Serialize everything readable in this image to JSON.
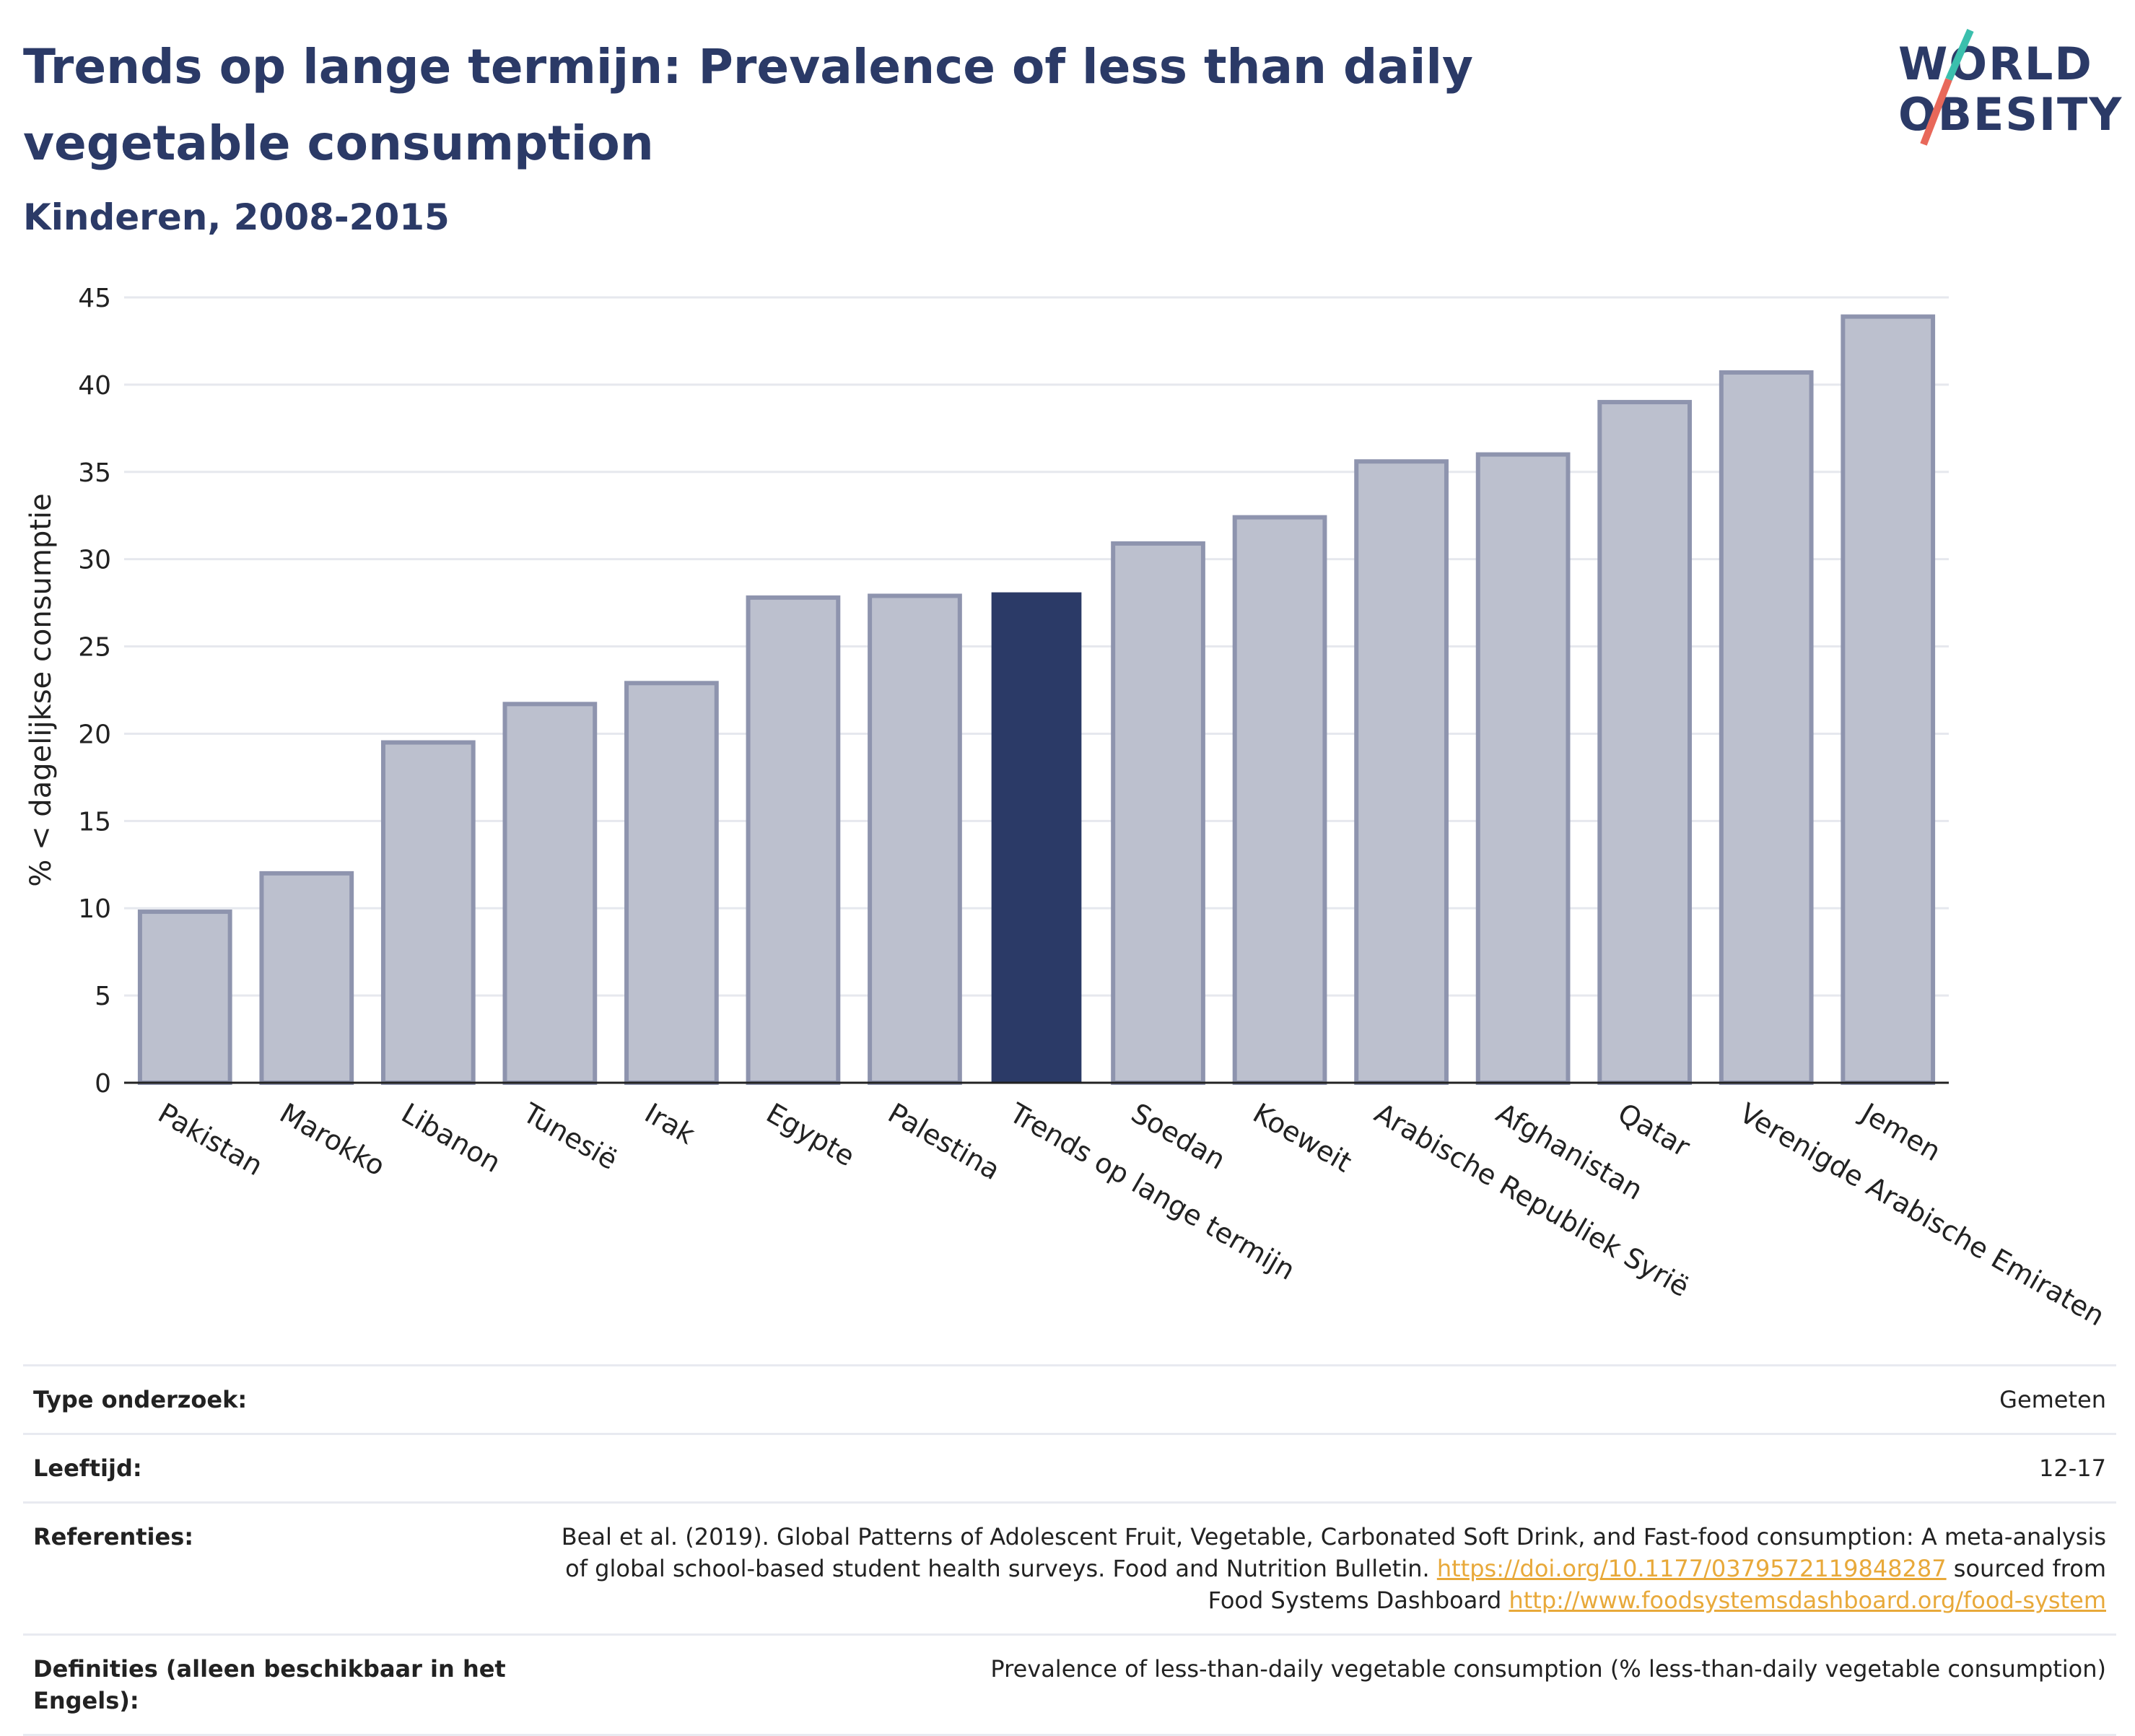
{
  "header": {
    "title": "Trends op lange termijn: Prevalence of less than daily vegetable consumption",
    "subtitle": "Kinderen, 2008-2015"
  },
  "logo": {
    "line1": "WORLD",
    "line2": "OBESITY",
    "accent_teal": "#3bbfad",
    "accent_red": "#e8685a"
  },
  "colors": {
    "bar": "#bcc0ce",
    "bar_edge": "#8e94ae",
    "highlight": "#2b3a67",
    "grid": "#e6e8ee"
  },
  "chart_data": {
    "type": "bar",
    "ylabel": "% < dagelijkse consumptie",
    "ylim": [
      0,
      45
    ],
    "yticks": [
      0,
      5,
      10,
      15,
      20,
      25,
      30,
      35,
      40,
      45
    ],
    "categories": [
      "Pakistan",
      "Marokko",
      "Libanon",
      "Tunesië",
      "Irak",
      "Egypte",
      "Palestina",
      "Trends op lange termijn",
      "Soedan",
      "Koeweit",
      "Arabische Republiek Syrië",
      "Afghanistan",
      "Qatar",
      "Verenigde Arabische Emiraten",
      "Jemen"
    ],
    "values": [
      9.8,
      12.0,
      19.5,
      21.7,
      22.9,
      27.8,
      27.9,
      28.1,
      30.9,
      32.4,
      35.6,
      36.0,
      39.0,
      40.7,
      43.9
    ],
    "highlight": "Trends op lange termijn",
    "grid": true
  },
  "info": {
    "type_label": "Type onderzoek:",
    "type_value": "Gemeten",
    "age_label": "Leeftijd:",
    "age_value": "12-17",
    "ref_label": "Referenties:",
    "ref_text1": "Beal et al. (2019). Global Patterns of Adolescent Fruit, Vegetable, Carbonated Soft Drink, and Fast-food consumption: A meta-analysis of global school-based student health surveys. Food and Nutrition Bulletin.",
    "ref_link1": "https://doi.org/10.1177/0379572119848287",
    "ref_text2": "sourced from Food Systems Dashboard",
    "ref_link2": "http://www.foodsystemsdashboard.org/food-system",
    "def_label": "Definities (alleen beschikbaar in het Engels):",
    "def_value": "Prevalence of less-than-daily vegetable consumption (% less-than-daily vegetable consumption)"
  }
}
